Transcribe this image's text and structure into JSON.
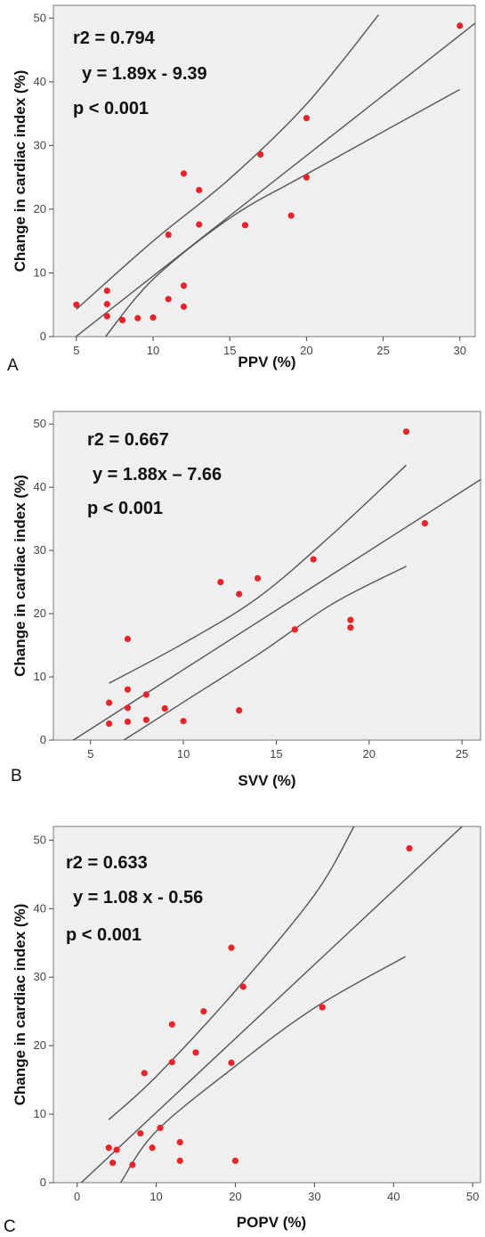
{
  "chart_data": [
    {
      "type": "scatter",
      "panel_label": "A",
      "xlabel": "PPV (%)",
      "ylabel": "Change in cardiac index (%)",
      "xlim": [
        3.5,
        31
      ],
      "ylim": [
        0,
        52
      ],
      "x_ticks": [
        5,
        10,
        15,
        20,
        25,
        30
      ],
      "y_ticks": [
        0,
        10,
        20,
        30,
        40,
        50
      ],
      "grid": false,
      "annotations": [
        "r2 = 0.794",
        "y = 1.89x - 9.39",
        "p  < 0.001"
      ],
      "fit": {
        "slope": 1.89,
        "intercept": -9.39
      },
      "ci_upper": [
        [
          5,
          4.3
        ],
        [
          10,
          15
        ],
        [
          15,
          24.8
        ],
        [
          20,
          36.5
        ],
        [
          24.7,
          50.5
        ]
      ],
      "ci_lower": [
        [
          6.9,
          0
        ],
        [
          10,
          9
        ],
        [
          15,
          18.6
        ],
        [
          20,
          25.5
        ],
        [
          30,
          38.8
        ]
      ],
      "points": [
        {
          "x": 5,
          "y": 5
        },
        {
          "x": 7,
          "y": 7.2
        },
        {
          "x": 7,
          "y": 5.1
        },
        {
          "x": 7,
          "y": 3.2
        },
        {
          "x": 8,
          "y": 2.6
        },
        {
          "x": 9,
          "y": 2.9
        },
        {
          "x": 10,
          "y": 3
        },
        {
          "x": 11,
          "y": 5.9
        },
        {
          "x": 11,
          "y": 16
        },
        {
          "x": 12,
          "y": 25.6
        },
        {
          "x": 12,
          "y": 8
        },
        {
          "x": 12,
          "y": 4.7
        },
        {
          "x": 13,
          "y": 23
        },
        {
          "x": 13,
          "y": 17.6
        },
        {
          "x": 16,
          "y": 17.5
        },
        {
          "x": 17,
          "y": 28.6
        },
        {
          "x": 19,
          "y": 19
        },
        {
          "x": 20,
          "y": 34.3
        },
        {
          "x": 20,
          "y": 25
        },
        {
          "x": 30,
          "y": 48.8
        }
      ]
    },
    {
      "type": "scatter",
      "panel_label": "B",
      "xlabel": "SVV (%)",
      "ylabel": "Change in cardiac index (%)",
      "xlim": [
        3,
        26
      ],
      "ylim": [
        0,
        52
      ],
      "x_ticks": [
        5,
        10,
        15,
        20,
        25
      ],
      "y_ticks": [
        0,
        10,
        20,
        30,
        40,
        50
      ],
      "grid": false,
      "annotations": [
        "r2 = 0.667",
        "y = 1.88x – 7.66",
        "p < 0.001"
      ],
      "fit": {
        "slope": 1.88,
        "intercept": -7.66
      },
      "ci_upper": [
        [
          6,
          9
        ],
        [
          10,
          15.3
        ],
        [
          14,
          22.5
        ],
        [
          18,
          32.5
        ],
        [
          22,
          43.5
        ]
      ],
      "ci_lower": [
        [
          6.8,
          0
        ],
        [
          10,
          6
        ],
        [
          14,
          13.5
        ],
        [
          18,
          21.5
        ],
        [
          22,
          27.5
        ]
      ],
      "points": [
        {
          "x": 6,
          "y": 5.9
        },
        {
          "x": 6,
          "y": 2.6
        },
        {
          "x": 7,
          "y": 16
        },
        {
          "x": 7,
          "y": 8
        },
        {
          "x": 7,
          "y": 5.1
        },
        {
          "x": 7,
          "y": 2.9
        },
        {
          "x": 8,
          "y": 7.2
        },
        {
          "x": 8,
          "y": 3.2
        },
        {
          "x": 9,
          "y": 5
        },
        {
          "x": 10,
          "y": 3
        },
        {
          "x": 12,
          "y": 25
        },
        {
          "x": 13,
          "y": 23.1
        },
        {
          "x": 13,
          "y": 4.7
        },
        {
          "x": 14,
          "y": 25.6
        },
        {
          "x": 16,
          "y": 17.5
        },
        {
          "x": 17,
          "y": 28.6
        },
        {
          "x": 19,
          "y": 19
        },
        {
          "x": 19,
          "y": 17.8
        },
        {
          "x": 22,
          "y": 48.8
        },
        {
          "x": 23,
          "y": 34.3
        }
      ]
    },
    {
      "type": "scatter",
      "panel_label": "C",
      "xlabel": "POPV (%)",
      "ylabel": "Change in cardiac index (%)",
      "xlim": [
        -3,
        51
      ],
      "ylim": [
        0,
        52
      ],
      "x_ticks": [
        0,
        10,
        20,
        30,
        40,
        50
      ],
      "y_ticks": [
        0,
        10,
        20,
        30,
        40,
        50
      ],
      "grid": false,
      "annotations": [
        "r2 = 0.633",
        "y = 1.08 x - 0.56",
        "p  < 0.001"
      ],
      "fit": {
        "slope": 1.08,
        "intercept": -0.56
      },
      "ci_upper": [
        [
          4,
          9.2
        ],
        [
          10,
          15.5
        ],
        [
          20,
          28
        ],
        [
          30,
          42
        ],
        [
          35,
          52
        ]
      ],
      "ci_lower": [
        [
          5.5,
          0
        ],
        [
          10,
          7.5
        ],
        [
          20,
          17
        ],
        [
          30,
          25.5
        ],
        [
          41.5,
          33
        ]
      ],
      "points": [
        {
          "x": 4,
          "y": 5.1
        },
        {
          "x": 4.5,
          "y": 2.9
        },
        {
          "x": 5,
          "y": 4.8
        },
        {
          "x": 7,
          "y": 2.6
        },
        {
          "x": 8,
          "y": 7.2
        },
        {
          "x": 8.5,
          "y": 16
        },
        {
          "x": 9.5,
          "y": 5.1
        },
        {
          "x": 10.5,
          "y": 8
        },
        {
          "x": 12,
          "y": 23.1
        },
        {
          "x": 12,
          "y": 17.6
        },
        {
          "x": 13,
          "y": 5.9
        },
        {
          "x": 13,
          "y": 3.2
        },
        {
          "x": 15,
          "y": 19
        },
        {
          "x": 16,
          "y": 25
        },
        {
          "x": 19.5,
          "y": 34.3
        },
        {
          "x": 19.5,
          "y": 17.5
        },
        {
          "x": 20,
          "y": 3.2
        },
        {
          "x": 21,
          "y": 28.6
        },
        {
          "x": 31,
          "y": 25.6
        },
        {
          "x": 42,
          "y": 48.8
        }
      ]
    }
  ]
}
